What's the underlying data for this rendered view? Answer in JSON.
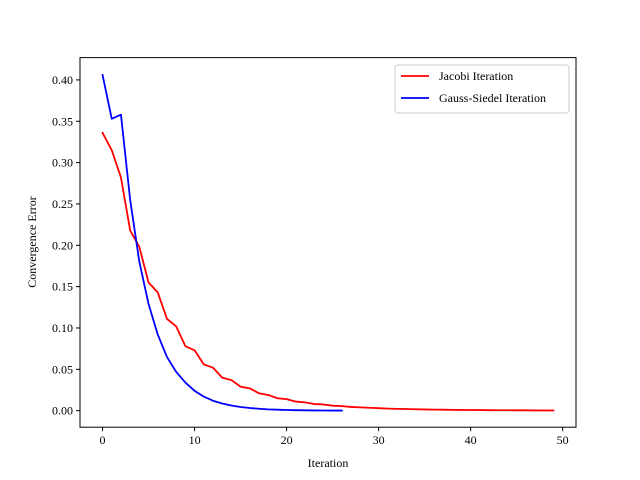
{
  "chart_data": {
    "type": "line",
    "title": "",
    "xlabel": "Iteration",
    "ylabel": "Convergence Error",
    "xlim": [
      -2.45,
      51.45
    ],
    "ylim": [
      -0.02,
      0.427
    ],
    "xticks": [
      0,
      10,
      20,
      30,
      40,
      50
    ],
    "xtick_labels": [
      "0",
      "10",
      "20",
      "30",
      "40",
      "50"
    ],
    "yticks": [
      0.0,
      0.05,
      0.1,
      0.15,
      0.2,
      0.25,
      0.3,
      0.35,
      0.4
    ],
    "ytick_labels": [
      "0.00",
      "0.05",
      "0.10",
      "0.15",
      "0.20",
      "0.25",
      "0.30",
      "0.35",
      "0.40"
    ],
    "grid": false,
    "legend_position": "top-right",
    "series": [
      {
        "name": "Jacobi Iteration",
        "color": "#ff0000",
        "x": [
          0,
          1,
          2,
          3,
          4,
          5,
          6,
          7,
          8,
          9,
          10,
          11,
          12,
          13,
          14,
          15,
          16,
          17,
          18,
          19,
          20,
          21,
          22,
          23,
          24,
          25,
          26,
          27,
          28,
          29,
          30,
          31,
          32,
          33,
          34,
          35,
          36,
          37,
          38,
          39,
          40,
          41,
          42,
          43,
          44,
          45,
          46,
          47,
          48,
          49
        ],
        "values": [
          0.336,
          0.315,
          0.282,
          0.218,
          0.198,
          0.155,
          0.143,
          0.111,
          0.102,
          0.078,
          0.073,
          0.056,
          0.052,
          0.04,
          0.037,
          0.029,
          0.027,
          0.021,
          0.019,
          0.015,
          0.014,
          0.011,
          0.01,
          0.008,
          0.0075,
          0.006,
          0.0055,
          0.0045,
          0.004,
          0.0035,
          0.003,
          0.0025,
          0.0022,
          0.002,
          0.0017,
          0.0015,
          0.0013,
          0.0012,
          0.001,
          0.0009,
          0.0008,
          0.0007,
          0.0006,
          0.0005,
          0.0005,
          0.0004,
          0.0004,
          0.0003,
          0.0003,
          0.0002
        ]
      },
      {
        "name": "Gauss-Siedel Iteration",
        "color": "#0000ff",
        "x": [
          0,
          1,
          2,
          3,
          4,
          5,
          6,
          7,
          8,
          9,
          10,
          11,
          12,
          13,
          14,
          15,
          16,
          17,
          18,
          19,
          20,
          21,
          22,
          23,
          24,
          25,
          26
        ],
        "values": [
          0.406,
          0.353,
          0.358,
          0.255,
          0.18,
          0.129,
          0.092,
          0.065,
          0.047,
          0.034,
          0.024,
          0.017,
          0.012,
          0.0087,
          0.0062,
          0.0044,
          0.0032,
          0.0023,
          0.0016,
          0.0012,
          0.0008,
          0.0006,
          0.0004,
          0.0003,
          0.0002,
          0.00015,
          0.0001
        ]
      }
    ]
  }
}
